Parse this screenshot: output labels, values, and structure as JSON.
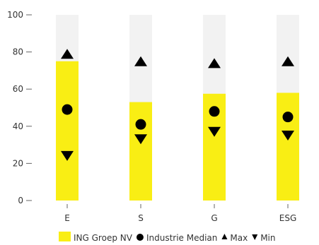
{
  "chart_data": {
    "type": "bar",
    "categories": [
      "E",
      "S",
      "G",
      "ESG"
    ],
    "ylim": [
      0,
      100
    ],
    "yticks": [
      0,
      20,
      40,
      60,
      80,
      100
    ],
    "series": [
      {
        "name": "ING Groep NV",
        "marker": "bar",
        "values": [
          75,
          53,
          57.5,
          58
        ]
      },
      {
        "name": "Industrie Median",
        "marker": "circle",
        "values": [
          49,
          41,
          48,
          45
        ]
      },
      {
        "name": "Max",
        "marker": "triangle-up",
        "values": [
          79,
          75,
          74,
          75
        ]
      },
      {
        "name": "Min",
        "marker": "triangle-down",
        "values": [
          24,
          33,
          37,
          35
        ]
      }
    ],
    "grid": false,
    "legend_position": "bottom",
    "colors": {
      "bar": "#f9ee14",
      "background_band": "#f2f2f2",
      "marker": "#000000",
      "axis_text": "#333333"
    }
  }
}
